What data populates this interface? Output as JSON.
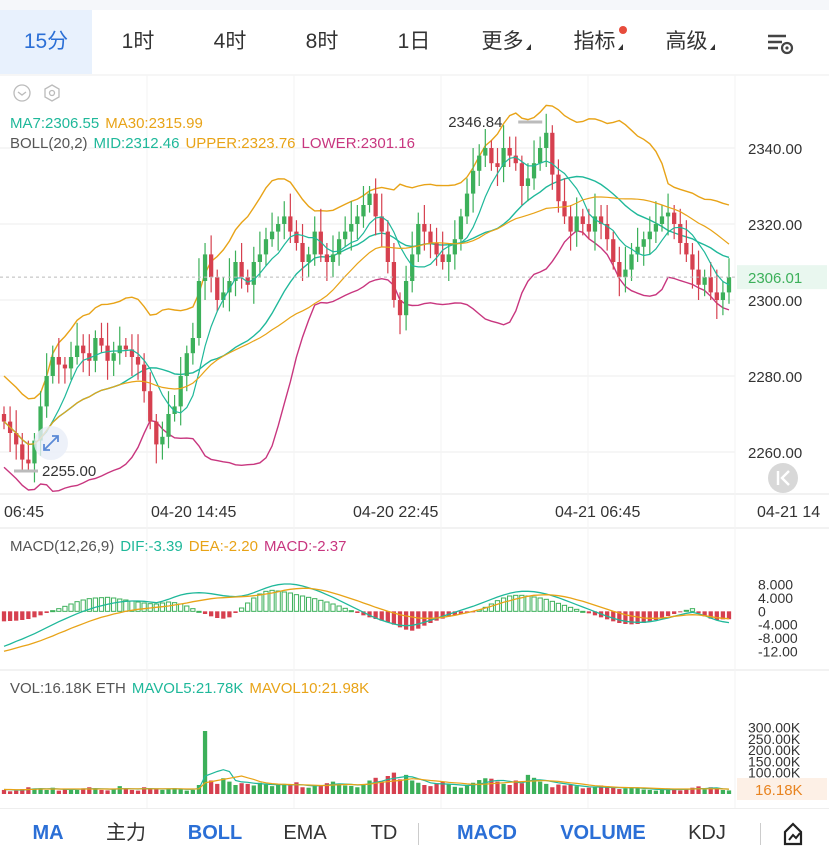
{
  "tabs": [
    {
      "label": "15分",
      "active": true
    },
    {
      "label": "1时"
    },
    {
      "label": "4时"
    },
    {
      "label": "8时"
    },
    {
      "label": "1日"
    },
    {
      "label": "更多"
    },
    {
      "label": "指标"
    },
    {
      "label": "高级"
    }
  ],
  "legend": {
    "ma7": "MA7:2306.55",
    "ma30": "MA30:2315.99",
    "boll": "BOLL(20,2)",
    "mid": "MID:2312.46",
    "upper": "UPPER:2323.76",
    "lower": "LOWER:2301.16",
    "macd_title": "MACD(12,26,9)",
    "dif": "DIF:-3.39",
    "dea": "DEA:-2.20",
    "macd": "MACD:-2.37",
    "vol": "VOL:16.18K ETH",
    "mavol5": "MAVOL5:21.78K",
    "mavol10": "MAVOL10:21.98K"
  },
  "colors": {
    "up": "#3cb05a",
    "down": "#d6404f",
    "ma7": "#1fb89a",
    "ma30": "#e8a317",
    "mid": "#1fb89a",
    "upper": "#e8a317",
    "lower": "#c8367f",
    "grid": "#eeeeee",
    "accent": "#2b6fd6"
  },
  "bottom": [
    {
      "label": "MA",
      "on": true
    },
    {
      "label": "主力"
    },
    {
      "label": "BOLL",
      "on": true
    },
    {
      "label": "EMA"
    },
    {
      "label": "TD"
    },
    {
      "label": "MACD",
      "on": true
    },
    {
      "label": "VOLUME",
      "on": true
    },
    {
      "label": "KDJ"
    }
  ],
  "chart_data": [
    {
      "type": "candlestick",
      "title": "",
      "y_ticks": [
        2340.0,
        2320.0,
        2300.0,
        2280.0,
        2260.0
      ],
      "y_tick_labels": [
        "2340.00",
        "2320.00",
        "2300.00",
        "2280.00",
        "2260.00"
      ],
      "ylim": [
        2250,
        2350
      ],
      "x_tick_labels": [
        "06:45",
        "04-20 14:45",
        "04-20 22:45",
        "04-21 06:45",
        "04-21 14"
      ],
      "current_price": "2306.01",
      "high_marker": "2346.84",
      "low_marker": "2255.00",
      "close": [
        2268,
        2265,
        2262,
        2258,
        2257,
        2263,
        2272,
        2280,
        2285,
        2283,
        2282,
        2285,
        2288,
        2286,
        2284,
        2290,
        2288,
        2284,
        2286,
        2288,
        2287,
        2285,
        2283,
        2276,
        2268,
        2262,
        2264,
        2270,
        2272,
        2280,
        2286,
        2290,
        2305,
        2312,
        2306,
        2300,
        2302,
        2305,
        2310,
        2306,
        2304,
        2310,
        2312,
        2316,
        2318,
        2320,
        2322,
        2318,
        2315,
        2310,
        2312,
        2318,
        2312,
        2310,
        2312,
        2316,
        2318,
        2320,
        2322,
        2325,
        2328,
        2322,
        2318,
        2310,
        2300,
        2296,
        2305,
        2312,
        2320,
        2318,
        2315,
        2312,
        2310,
        2312,
        2316,
        2322,
        2328,
        2334,
        2338,
        2340,
        2336,
        2335,
        2340,
        2338,
        2336,
        2330,
        2332,
        2336,
        2340,
        2344,
        2333,
        2326,
        2322,
        2318,
        2322,
        2320,
        2318,
        2322,
        2320,
        2316,
        2310,
        2306,
        2308,
        2312,
        2314,
        2316,
        2318,
        2320,
        2322,
        2323,
        2320,
        2315,
        2312,
        2308,
        2304,
        2306,
        2302,
        2300,
        2302,
        2306
      ]
    },
    {
      "type": "bar",
      "title": "",
      "series": [
        {
          "name": "MACD"
        },
        {
          "name": "DIF"
        },
        {
          "name": "DEA"
        }
      ],
      "y_tick_labels": [
        "8.000",
        "4.000",
        "0",
        "-4.000",
        "-8.000",
        "-12.00"
      ],
      "ylim": [
        -14,
        10
      ],
      "macd": [
        -3.0,
        -2.9,
        -2.8,
        -2.6,
        -2.3,
        -1.8,
        -1.2,
        -0.5,
        0.2,
        0.8,
        1.5,
        2.2,
        2.9,
        3.4,
        3.8,
        4.0,
        4.1,
        4.2,
        4.0,
        3.7,
        3.4,
        3.1,
        2.8,
        2.5,
        2.3,
        2.2,
        2.5,
        2.8,
        2.6,
        2.2,
        1.6,
        0.8,
        0.0,
        -0.8,
        -1.5,
        -2.0,
        -2.2,
        -1.8,
        -0.5,
        1.0,
        2.5,
        4.0,
        5.2,
        6.0,
        6.3,
        6.1,
        5.8,
        5.5,
        5.0,
        4.6,
        4.2,
        3.8,
        3.3,
        2.8,
        2.2,
        1.6,
        0.9,
        0.2,
        -0.5,
        -1.2,
        -1.8,
        -2.3,
        -2.8,
        -3.3,
        -4.0,
        -4.8,
        -5.5,
        -5.8,
        -5.2,
        -4.3,
        -3.5,
        -2.8,
        -2.2,
        -1.6,
        -1.2,
        -0.8,
        -0.5,
        -0.2,
        0.4,
        1.2,
        2.2,
        3.2,
        4.0,
        4.6,
        4.8,
        4.8,
        4.6,
        4.3,
        4.0,
        3.6,
        3.0,
        2.4,
        1.8,
        1.2,
        0.6,
        0.0,
        -0.6,
        -1.2,
        -1.8,
        -2.4,
        -3.0,
        -3.5,
        -3.8,
        -3.9,
        -3.8,
        -3.5,
        -3.1,
        -2.6,
        -2.0,
        -1.4,
        -0.8,
        -0.3,
        0.3,
        0.8,
        -0.6,
        -1.5,
        -2.2,
        -2.6,
        -2.4,
        -2.37
      ],
      "dif": [
        -10.5,
        -9.8,
        -9.0,
        -8.3,
        -7.5,
        -6.7,
        -5.8,
        -4.9,
        -4.0,
        -3.1,
        -2.3,
        -1.5,
        -0.7,
        0.0,
        0.6,
        1.2,
        1.7,
        2.1,
        2.5,
        2.8,
        3.0,
        3.1,
        3.1,
        3.0,
        2.8,
        2.6,
        3.0,
        3.6,
        4.3,
        4.9,
        5.3,
        5.5,
        5.6,
        5.5,
        5.3,
        5.0,
        4.7,
        4.5,
        4.4,
        4.6,
        5.0,
        5.6,
        6.3,
        7.0,
        7.6,
        8.0,
        8.2,
        8.2,
        8.0,
        7.6,
        7.1,
        6.5,
        5.8,
        5.0,
        4.2,
        3.3,
        2.4,
        1.5,
        0.6,
        -0.3,
        -1.2,
        -2.0,
        -2.7,
        -3.3,
        -3.8,
        -4.2,
        -4.3,
        -4.2,
        -3.8,
        -3.3,
        -2.7,
        -2.1,
        -1.5,
        -0.9,
        -0.3,
        0.3,
        0.9,
        1.5,
        2.2,
        2.9,
        3.6,
        4.3,
        4.9,
        5.4,
        5.8,
        6.0,
        6.0,
        5.9,
        5.6,
        5.2,
        4.7,
        4.1,
        3.4,
        2.7,
        2.0,
        1.3,
        0.6,
        -0.1,
        -0.8,
        -1.5,
        -2.1,
        -2.6,
        -3.0,
        -3.2,
        -3.3,
        -3.3,
        -3.1,
        -2.8,
        -2.4,
        -2.0,
        -1.5,
        -1.0,
        -0.6,
        -0.3,
        -0.7,
        -1.3,
        -2.0,
        -2.7,
        -3.1,
        -3.39
      ],
      "dea": [
        -12.0,
        -11.5,
        -11.0,
        -10.5,
        -10.0,
        -9.4,
        -8.8,
        -8.1,
        -7.4,
        -6.6,
        -5.9,
        -5.1,
        -4.4,
        -3.7,
        -3.0,
        -2.4,
        -1.8,
        -1.3,
        -0.8,
        -0.4,
        0.0,
        0.3,
        0.6,
        0.8,
        1.0,
        1.2,
        1.4,
        1.6,
        1.9,
        2.2,
        2.5,
        2.9,
        3.2,
        3.5,
        3.8,
        4.0,
        4.1,
        4.2,
        4.3,
        4.4,
        4.5,
        4.7,
        4.9,
        5.2,
        5.5,
        5.9,
        6.3,
        6.6,
        6.8,
        6.9,
        6.9,
        6.7,
        6.4,
        6.0,
        5.5,
        5.0,
        4.4,
        3.8,
        3.2,
        2.5,
        1.9,
        1.2,
        0.6,
        0.0,
        -0.5,
        -1.0,
        -1.4,
        -1.7,
        -2.0,
        -2.1,
        -2.1,
        -2.0,
        -1.8,
        -1.5,
        -1.2,
        -0.8,
        -0.4,
        0.0,
        0.5,
        1.0,
        1.5,
        2.1,
        2.7,
        3.2,
        3.7,
        4.1,
        4.5,
        4.8,
        4.9,
        5.0,
        4.9,
        4.7,
        4.4,
        4.0,
        3.5,
        3.0,
        2.4,
        1.8,
        1.2,
        0.6,
        0.0,
        -0.5,
        -1.0,
        -1.4,
        -1.7,
        -2.0,
        -2.1,
        -2.1,
        -2.0,
        -1.8,
        -1.5,
        -1.3,
        -1.1,
        -1.0,
        -1.1,
        -1.3,
        -1.6,
        -1.9,
        -2.1,
        -2.2
      ]
    },
    {
      "type": "bar",
      "title": "",
      "series": [
        {
          "name": "VOL"
        },
        {
          "name": "MAVOL5"
        },
        {
          "name": "MAVOL10"
        }
      ],
      "y_tick_labels": [
        "300.00K",
        "250.00K",
        "200.00K",
        "150.00K",
        "100.00K"
      ],
      "ylim": [
        0,
        320
      ],
      "current_vol": "16.18K",
      "volume": [
        18,
        12,
        15,
        22,
        30,
        25,
        20,
        18,
        28,
        15,
        22,
        20,
        18,
        25,
        30,
        22,
        18,
        16,
        20,
        35,
        24,
        18,
        15,
        30,
        25,
        20,
        18,
        22,
        26,
        20,
        15,
        18,
        40,
        280,
        60,
        45,
        70,
        55,
        40,
        48,
        45,
        38,
        50,
        42,
        35,
        40,
        45,
        38,
        52,
        30,
        28,
        35,
        40,
        48,
        55,
        42,
        38,
        36,
        30,
        44,
        60,
        72,
        55,
        80,
        95,
        65,
        85,
        60,
        50,
        40,
        35,
        48,
        55,
        45,
        32,
        28,
        40,
        50,
        62,
        70,
        68,
        55,
        45,
        40,
        60,
        48,
        85,
        72,
        55,
        45,
        30,
        42,
        38,
        40,
        35,
        25,
        28,
        32,
        38,
        35,
        30,
        22,
        24,
        30,
        26,
        20,
        18,
        15,
        22,
        25,
        20,
        16,
        22,
        28,
        34,
        20,
        30,
        25,
        18,
        16
      ],
      "mavol5": [
        20,
        19,
        18,
        18,
        20,
        22,
        24,
        23,
        24,
        22,
        21,
        20,
        21,
        22,
        23,
        24,
        23,
        22,
        21,
        23,
        24,
        23,
        22,
        24,
        24,
        23,
        22,
        23,
        23,
        22,
        21,
        21,
        24,
        80,
        90,
        100,
        108,
        100,
        60,
        54,
        52,
        48,
        46,
        44,
        42,
        41,
        42,
        40,
        42,
        41,
        38,
        36,
        37,
        39,
        43,
        45,
        44,
        43,
        40,
        41,
        45,
        52,
        57,
        65,
        70,
        74,
        78,
        76,
        68,
        60,
        50,
        46,
        45,
        44,
        42,
        40,
        38,
        40,
        44,
        50,
        57,
        60,
        60,
        56,
        52,
        50,
        57,
        62,
        63,
        60,
        55,
        50,
        46,
        42,
        38,
        35,
        32,
        31,
        31,
        30,
        29,
        28,
        27,
        28,
        27,
        25,
        23,
        21,
        20,
        19,
        20,
        20,
        21,
        22,
        24,
        24,
        26,
        27,
        23,
        21.78
      ],
      "mavol10": [
        20,
        20,
        19,
        19,
        20,
        21,
        22,
        22,
        22,
        22,
        22,
        22,
        22,
        22,
        22,
        22,
        22,
        22,
        22,
        23,
        23,
        23,
        23,
        23,
        23,
        23,
        23,
        23,
        23,
        23,
        22,
        22,
        23,
        50,
        55,
        60,
        65,
        70,
        75,
        80,
        72,
        65,
        55,
        50,
        46,
        44,
        43,
        42,
        41,
        41,
        40,
        39,
        38,
        38,
        40,
        41,
        42,
        42,
        41,
        42,
        44,
        48,
        52,
        55,
        58,
        60,
        64,
        68,
        66,
        63,
        60,
        58,
        55,
        52,
        50,
        48,
        45,
        43,
        43,
        44,
        46,
        48,
        50,
        52,
        54,
        55,
        57,
        58,
        59,
        59,
        58,
        56,
        53,
        50,
        47,
        44,
        40,
        37,
        35,
        33,
        31,
        30,
        29,
        28,
        28,
        27,
        26,
        25,
        24,
        23,
        22,
        22,
        22,
        22,
        23,
        23,
        23,
        23,
        22.5,
        21.98
      ]
    }
  ]
}
